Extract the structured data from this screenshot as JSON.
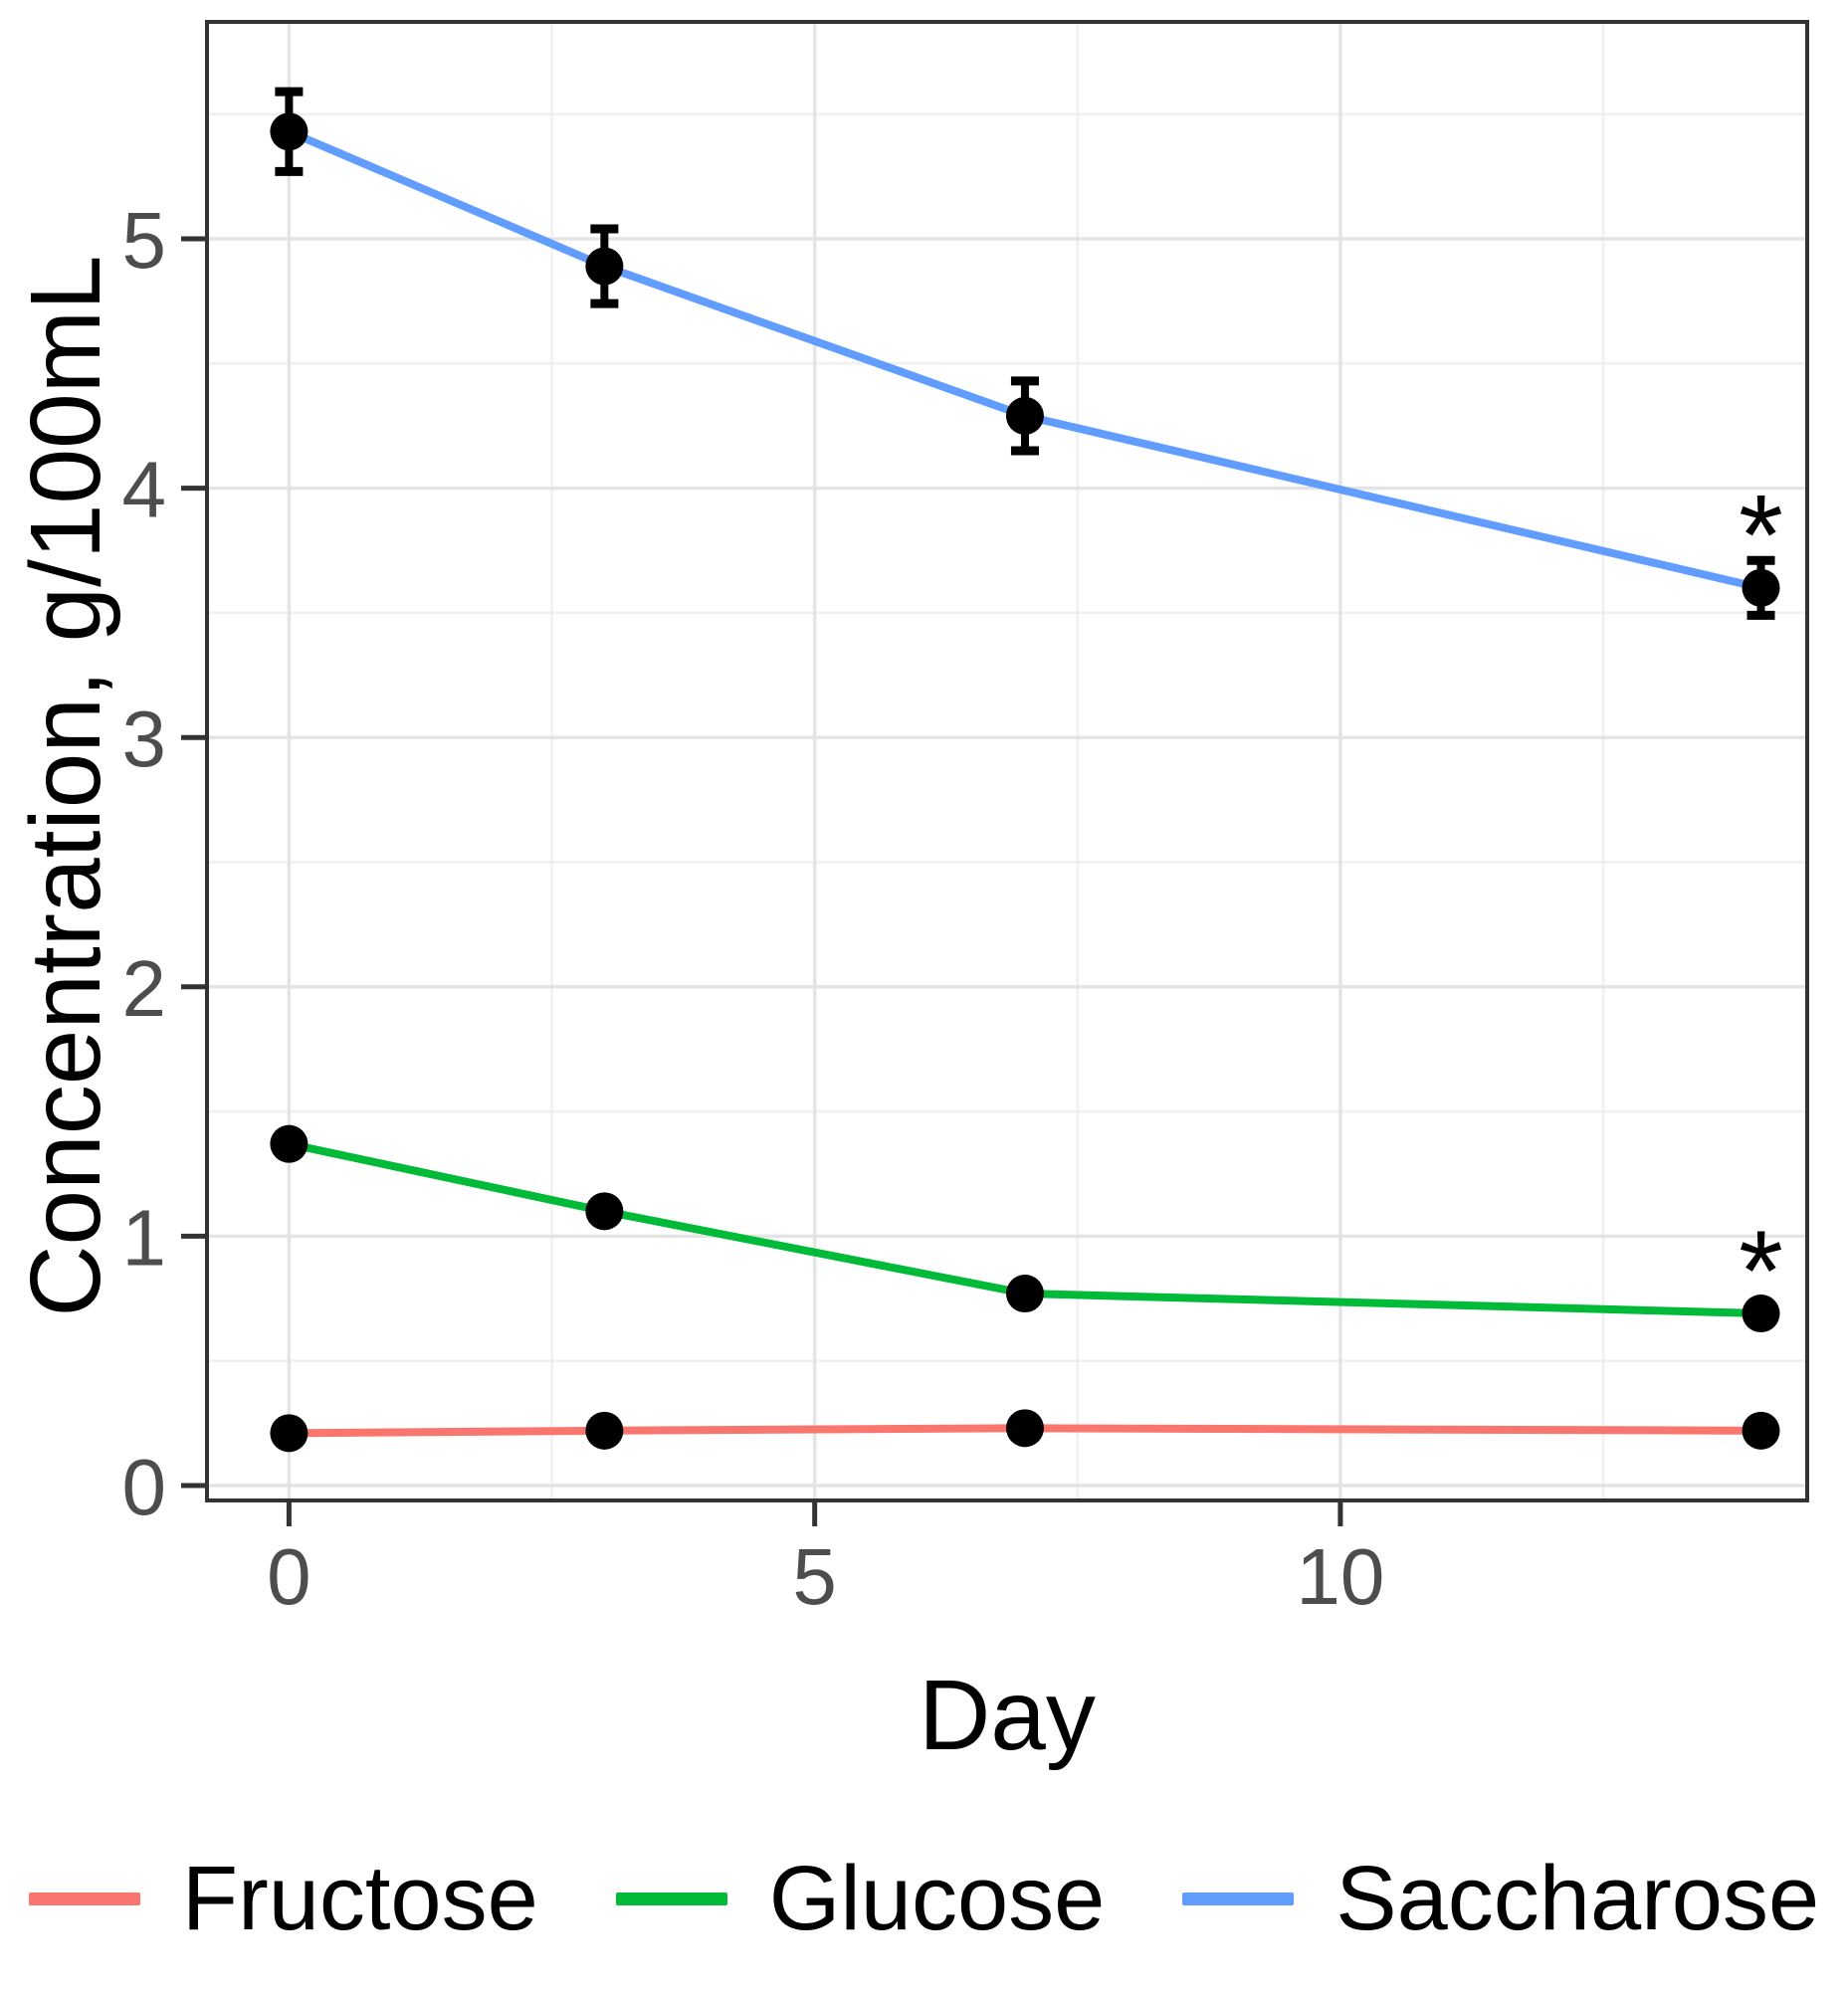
{
  "figure": {
    "kind": "static-plot-screenshot",
    "background": "#ffffff"
  },
  "axes": {
    "x_title": "Day",
    "y_title": "Concentration, g/100mL"
  },
  "legend": {
    "position": "bottom",
    "items": [
      {
        "label": "Fructose",
        "color": "#F8766D"
      },
      {
        "label": "Glucose",
        "color": "#00BA38"
      },
      {
        "label": "Saccharose",
        "color": "#619CFF"
      }
    ]
  },
  "chart_data": {
    "type": "line",
    "title": "",
    "xlabel": "Day",
    "ylabel": "Concentration, g/100mL",
    "x": [
      0,
      3,
      7,
      14
    ],
    "series": [
      {
        "name": "Fructose",
        "color": "#F8766D",
        "values": [
          0.21,
          0.22,
          0.23,
          0.22
        ],
        "errors": [
          0,
          0,
          0,
          0
        ]
      },
      {
        "name": "Glucose",
        "color": "#00BA38",
        "values": [
          1.37,
          1.1,
          0.77,
          0.69
        ],
        "errors": [
          0,
          0,
          0,
          0
        ]
      },
      {
        "name": "Saccharose",
        "color": "#619CFF",
        "values": [
          5.43,
          4.89,
          4.29,
          3.6
        ],
        "errors": [
          0.16,
          0.15,
          0.14,
          0.11
        ]
      }
    ],
    "annotations": [
      {
        "text": "*",
        "series": "Saccharose",
        "x": 14,
        "y": 3.88
      },
      {
        "text": "*",
        "series": "Glucose",
        "x": 14,
        "y": 0.93
      }
    ],
    "x_ticks": {
      "values": [
        0,
        5,
        10
      ],
      "labels": [
        "0",
        "5",
        "10"
      ],
      "minor": [
        2.5,
        7.5,
        12.5
      ]
    },
    "y_ticks": {
      "values": [
        0,
        1,
        2,
        3,
        4,
        5
      ],
      "labels": [
        "0",
        "1",
        "2",
        "3",
        "4",
        "5"
      ],
      "minor": [
        0.5,
        1.5,
        2.5,
        3.5,
        4.5,
        5.5
      ]
    },
    "xlim": [
      -0.78,
      14.44
    ],
    "ylim": [
      -0.06,
      5.87
    ],
    "grid": true,
    "legend_position": "bottom",
    "marker": "filled-circle",
    "point_color": "#000000"
  },
  "theme": {
    "grid_major": "#E4E4E4",
    "grid_minor": "#F0F0F0",
    "axis_text": "#4D4D4D",
    "axis_line": "#333333",
    "text_color": "#000000"
  }
}
